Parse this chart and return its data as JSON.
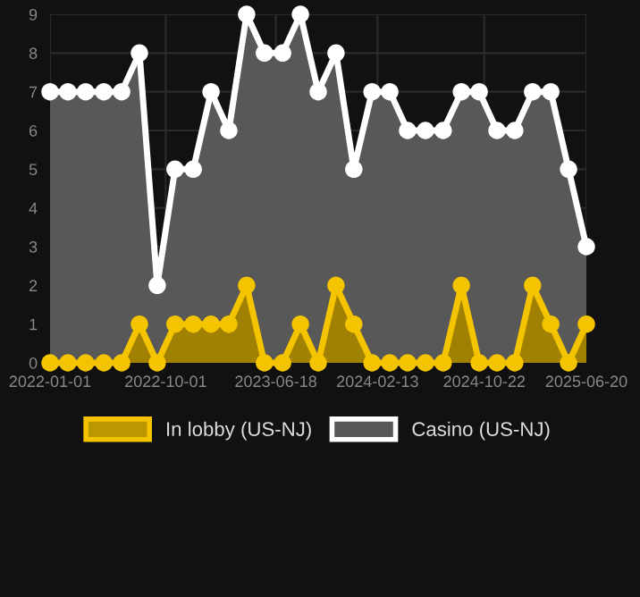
{
  "chart_data": {
    "type": "area",
    "x": [
      "2022-01-01",
      "2022-02-12",
      "2022-03-26",
      "2022-05-08",
      "2022-06-19",
      "2022-07-31",
      "2022-09-11",
      "2022-10-23",
      "2022-12-05",
      "2023-01-16",
      "2023-02-27",
      "2023-04-10",
      "2023-05-22",
      "2023-07-04",
      "2023-08-15",
      "2023-09-26",
      "2023-11-07",
      "2023-12-19",
      "2024-01-31",
      "2024-03-13",
      "2024-04-24",
      "2024-06-05",
      "2024-07-17",
      "2024-08-29",
      "2024-10-10",
      "2024-11-21",
      "2025-01-02",
      "2025-02-13",
      "2025-03-28",
      "2025-05-09",
      "2025-06-20"
    ],
    "series": [
      {
        "name": "In lobby (US-NJ)",
        "color": "#f5c400",
        "values": [
          0,
          0,
          0,
          0,
          0,
          1,
          0,
          1,
          1,
          1,
          1,
          2,
          0,
          0,
          1,
          0,
          2,
          1,
          0,
          0,
          0,
          0,
          0,
          2,
          0,
          0,
          0,
          2,
          1,
          0,
          1
        ]
      },
      {
        "name": "Casino (US-NJ)",
        "color": "#ffffff",
        "values": [
          7,
          7,
          7,
          7,
          7,
          8,
          2,
          5,
          5,
          7,
          6,
          9,
          8,
          8,
          9,
          7,
          8,
          5,
          7,
          7,
          6,
          6,
          6,
          7,
          7,
          6,
          6,
          7,
          7,
          5,
          3
        ]
      }
    ],
    "xlim": [
      "2022-01-01",
      "2025-06-20"
    ],
    "xticks": [
      "2022-01-01",
      "2022-10-01",
      "2023-06-18",
      "2024-02-13",
      "2024-10-22",
      "2025-06-20"
    ],
    "ylim": [
      0,
      9
    ],
    "yticks": [
      0,
      1,
      2,
      3,
      4,
      5,
      6,
      7,
      8,
      9
    ],
    "grid": true,
    "legend": "bottom",
    "marker": "circle"
  }
}
